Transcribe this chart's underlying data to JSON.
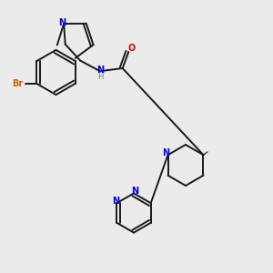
{
  "background_color": "#ebebeb",
  "bond_color": "#1a1a1a",
  "nitrogen_color": "#0000ee",
  "oxygen_color": "#dd0000",
  "bromine_color": "#cc6600",
  "hydrogen_color": "#4a8a8a",
  "line_width": 1.4,
  "figsize": [
    3.0,
    3.0
  ],
  "dpi": 100,
  "xlim": [
    0,
    1
  ],
  "ylim": [
    0,
    1
  ]
}
